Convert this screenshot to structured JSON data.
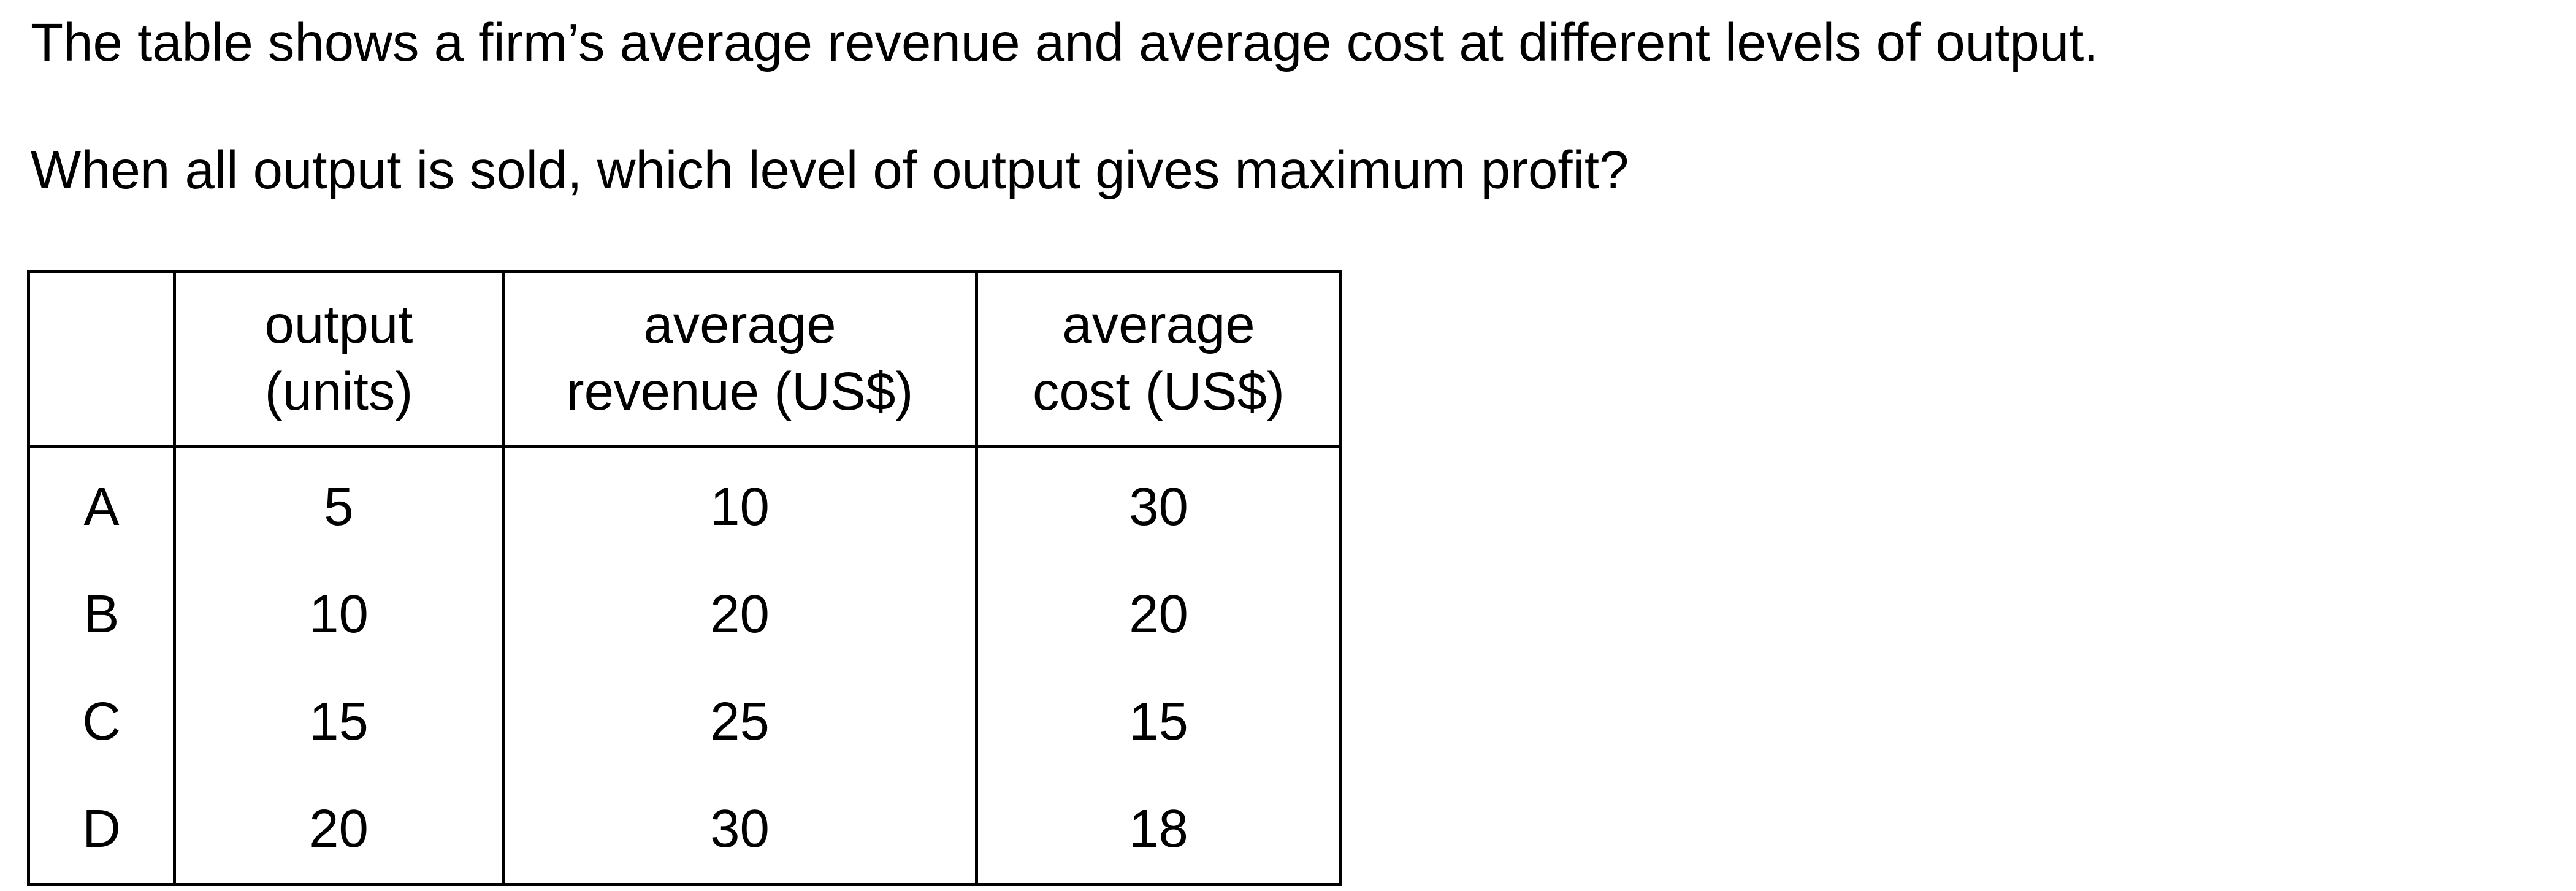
{
  "intro": "The table shows a firm’s average revenue and average cost at different levels of output.",
  "question": "When all output is sold, which level of output gives maximum profit?",
  "table": {
    "headers": {
      "label": "",
      "output_line1": "output",
      "output_line2": "(units)",
      "revenue_line1": "average",
      "revenue_line2": "revenue (US$)",
      "cost_line1": "average",
      "cost_line2": "cost (US$)"
    },
    "rows": [
      {
        "option": "A",
        "output": "5",
        "average_revenue": "10",
        "average_cost": "30"
      },
      {
        "option": "B",
        "output": "10",
        "average_revenue": "20",
        "average_cost": "20"
      },
      {
        "option": "C",
        "output": "15",
        "average_revenue": "25",
        "average_cost": "15"
      },
      {
        "option": "D",
        "output": "20",
        "average_revenue": "30",
        "average_cost": "18"
      }
    ]
  }
}
